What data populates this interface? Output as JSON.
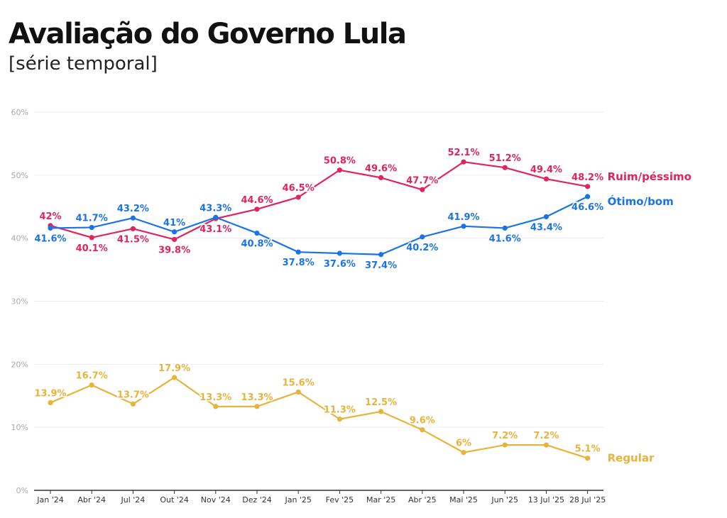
{
  "title": "Avaliação do Governo Lula",
  "subtitle": "[série temporal]",
  "chart_data": {
    "type": "line",
    "title": "Avaliação do Governo Lula",
    "subtitle": "[série temporal]",
    "categories": [
      "Jan '24",
      "Abr '24",
      "Jul '24",
      "Out '24",
      "Nov '24",
      "Dez '24",
      "Jan '25",
      "Fev '25",
      "Mar '25",
      "Abr '25",
      "Mai '25",
      "Jun '25",
      "13 Jul '25",
      "28 Jul '25"
    ],
    "ylim": [
      0,
      60
    ],
    "yticks": [
      0,
      10,
      20,
      30,
      40,
      50,
      60
    ],
    "ytick_labels": [
      "0%",
      "10%",
      "20%",
      "30%",
      "40%",
      "50%",
      "60%"
    ],
    "grid": true,
    "legend": "series labels at right end of lines",
    "series": [
      {
        "name": "Ruim/péssimo",
        "color": "#e0245e",
        "values": [
          42,
          40.1,
          41.5,
          39.8,
          43.1,
          44.6,
          46.5,
          50.8,
          49.6,
          47.7,
          52.1,
          51.2,
          49.4,
          48.2
        ],
        "labels": [
          "42%",
          "40.1%",
          "41.5%",
          "39.8%",
          "43.1%",
          "44.6%",
          "46.5%",
          "50.8%",
          "49.6%",
          "47.7%",
          "52.1%",
          "51.2%",
          "49.4%",
          "48.2%"
        ]
      },
      {
        "name": "Ótimo/bom",
        "color": "#1a73e8",
        "values": [
          41.6,
          41.7,
          43.2,
          41,
          43.3,
          40.8,
          37.8,
          37.6,
          37.4,
          40.2,
          41.9,
          41.6,
          43.4,
          46.6
        ],
        "labels": [
          "41.6%",
          "41.7%",
          "43.2%",
          "41%",
          "43.3%",
          "40.8%",
          "37.8%",
          "37.6%",
          "37.4%",
          "40.2%",
          "41.9%",
          "41.6%",
          "43.4%",
          "46.6%"
        ]
      },
      {
        "name": "Regular",
        "color": "#e8b33a",
        "values": [
          13.9,
          16.7,
          13.7,
          17.9,
          13.3,
          13.3,
          15.6,
          11.3,
          12.5,
          9.6,
          6,
          7.2,
          7.2,
          5.1
        ],
        "labels": [
          "13.9%",
          "16.7%",
          "13.7%",
          "17.9%",
          "13.3%",
          "13.3%",
          "15.6%",
          "11.3%",
          "12.5%",
          "9.6%",
          "6%",
          "7.2%",
          "7.2%",
          "5.1%"
        ]
      }
    ]
  }
}
